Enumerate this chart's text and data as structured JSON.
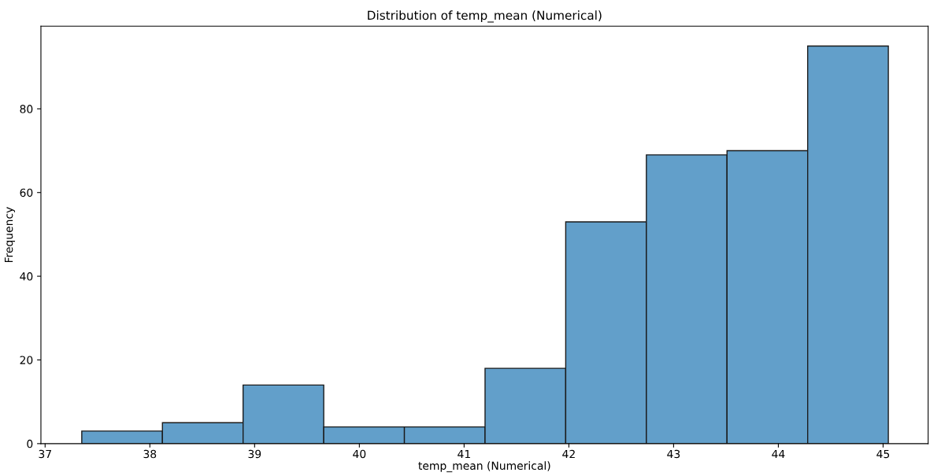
{
  "chart_data": {
    "type": "histogram",
    "title": "Distribution of temp_mean (Numerical)",
    "xlabel": "temp_mean (Numerical)",
    "ylabel": "Frequency",
    "bins": [
      37.35,
      38.12,
      38.89,
      39.66,
      40.43,
      41.2,
      41.97,
      42.74,
      43.51,
      44.28,
      45.05
    ],
    "values": [
      3,
      5,
      14,
      4,
      4,
      18,
      53,
      69,
      70,
      95
    ],
    "color": "#629fca",
    "xlim": [
      36.96,
      45.43
    ],
    "xticks": [
      37,
      38,
      39,
      40,
      41,
      42,
      43,
      44,
      45
    ],
    "ylim": [
      0,
      99.75
    ],
    "yticks": [
      0,
      20,
      40,
      60,
      80
    ],
    "grid": false,
    "legend": false
  }
}
